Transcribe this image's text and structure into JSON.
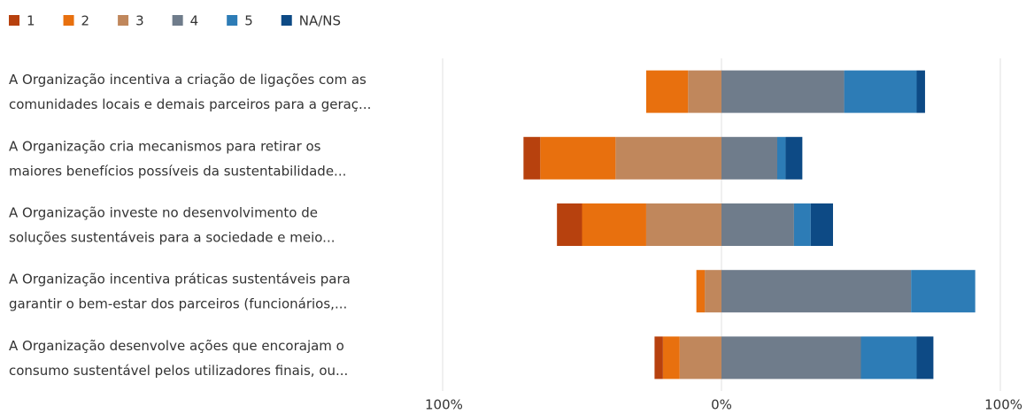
{
  "chart_data": {
    "type": "diverging_bar",
    "categories": [
      [
        "A Organização incentiva a criação de ligações com as",
        "comunidades locais e demais parceiros para a geraç..."
      ],
      [
        "A Organização cria mecanismos para retirar os",
        "maiores benefícios possíveis da sustentabilidade..."
      ],
      [
        "A Organização investe no desenvolvimento de",
        "soluções sustentáveis para a sociedade e meio..."
      ],
      [
        "A Organização incentiva práticas sustentáveis para",
        "garantir o bem-estar dos parceiros (funcionários,..."
      ],
      [
        "A Organização desenvolve ações que encorajam o",
        "consumo sustentável pelos utilizadores finais, ou..."
      ]
    ],
    "series": [
      {
        "name": "1",
        "color": "#b7410e",
        "side": "left",
        "values": [
          0,
          6,
          9,
          0,
          3
        ]
      },
      {
        "name": "2",
        "color": "#e8700e",
        "side": "left",
        "values": [
          15,
          27,
          23,
          3,
          6
        ]
      },
      {
        "name": "3",
        "color": "#c0875c",
        "side": "left",
        "values": [
          12,
          38,
          27,
          6,
          15
        ]
      },
      {
        "name": "4",
        "color": "#6f7c8b",
        "side": "right",
        "values": [
          44,
          20,
          26,
          68,
          50
        ]
      },
      {
        "name": "5",
        "color": "#2d7cb6",
        "side": "right",
        "values": [
          26,
          3,
          6,
          23,
          20
        ]
      },
      {
        "name": "NA/NS",
        "color": "#0d4a85",
        "side": "right",
        "values": [
          3,
          6,
          8,
          0,
          6
        ]
      }
    ],
    "xlim": [
      -100,
      100
    ],
    "xticks": [
      {
        "value": -100,
        "label": "100%"
      },
      {
        "value": 0,
        "label": "0%"
      },
      {
        "value": 100,
        "label": "100%"
      }
    ],
    "grid": true
  }
}
